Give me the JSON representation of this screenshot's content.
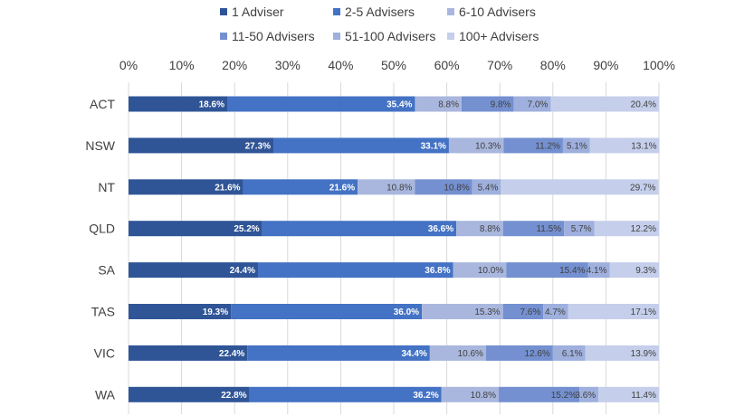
{
  "chart_data": {
    "type": "bar",
    "orientation": "horizontal",
    "stacked": "percent",
    "categories": [
      "ACT",
      "NSW",
      "NT",
      "QLD",
      "SA",
      "TAS",
      "VIC",
      "WA"
    ],
    "xlim": [
      0,
      100
    ],
    "xticks": [
      "0%",
      "10%",
      "20%",
      "30%",
      "40%",
      "50%",
      "60%",
      "70%",
      "80%",
      "90%",
      "100%"
    ],
    "grid": true,
    "legend_position": "top",
    "series": [
      {
        "name": "1 Adviser",
        "color": "#2f5597",
        "label_color": "#ffffff",
        "values": [
          18.6,
          27.3,
          21.6,
          25.2,
          24.4,
          19.3,
          22.4,
          22.8
        ],
        "labels": [
          "18.6%",
          "27.3%",
          "21.6%",
          "25.2%",
          "24.4%",
          "19.3%",
          "22.4%",
          "22.8%"
        ]
      },
      {
        "name": "2-5 Advisers",
        "color": "#4472c4",
        "label_color": "#ffffff",
        "values": [
          35.4,
          33.1,
          21.6,
          36.6,
          36.8,
          36.0,
          34.4,
          36.2
        ],
        "labels": [
          "35.4%",
          "33.1%",
          "21.6%",
          "36.6%",
          "36.8%",
          "36.0%",
          "34.4%",
          "36.2%"
        ]
      },
      {
        "name": "6-10 Advisers",
        "color": "#a9b7de",
        "label_color": "#404040",
        "values": [
          8.8,
          10.3,
          10.8,
          8.8,
          10.0,
          15.3,
          10.6,
          10.8
        ],
        "labels": [
          "8.8%",
          "10.3%",
          "10.8%",
          "8.8%",
          "10.0%",
          "15.3%",
          "10.6%",
          "10.8%"
        ]
      },
      {
        "name": "11-50 Advisers",
        "color": "#7490d0",
        "label_color": "#404040",
        "values": [
          9.8,
          11.2,
          10.8,
          11.5,
          15.4,
          7.6,
          12.6,
          15.2
        ],
        "labels": [
          "9.8%",
          "11.2%",
          "10.8%",
          "11.5%",
          "15.4%",
          "7.6%",
          "12.6%",
          "15.2%"
        ]
      },
      {
        "name": "51-100 Advisers",
        "color": "#9fb0de",
        "label_color": "#404040",
        "values": [
          7.0,
          5.1,
          5.4,
          5.7,
          4.1,
          4.7,
          6.1,
          3.6
        ],
        "labels": [
          "7.0%",
          "5.1%",
          "5.4%",
          "5.7%",
          "4.1%",
          "4.7%",
          "6.1%",
          "3.6%"
        ]
      },
      {
        "name": "100+ Advisers",
        "color": "#c5cfeb",
        "label_color": "#404040",
        "values": [
          20.4,
          13.1,
          29.7,
          12.2,
          9.3,
          17.1,
          13.9,
          11.4
        ],
        "labels": [
          "20.4%",
          "13.1%",
          "29.7%",
          "12.2%",
          "9.3%",
          "17.1%",
          "13.9%",
          "11.4%"
        ]
      }
    ]
  }
}
